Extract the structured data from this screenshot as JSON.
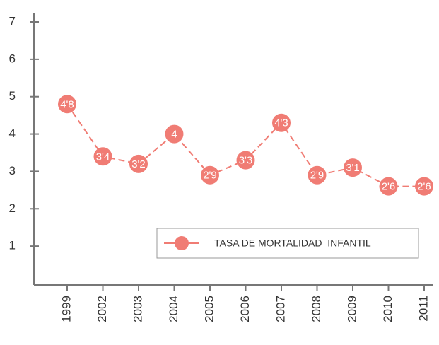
{
  "chart_data": {
    "type": "line",
    "categories": [
      "1999",
      "2002",
      "2003",
      "2004",
      "2005",
      "2006",
      "2007",
      "2008",
      "2009",
      "2010",
      "2011"
    ],
    "series": [
      {
        "name": "TASA DE MORTALIDAD  INFANTIL",
        "color": "#f07c74",
        "values": [
          4.8,
          3.4,
          3.2,
          4,
          2.9,
          3.3,
          4.3,
          2.9,
          3.1,
          2.6,
          2.6
        ],
        "value_labels": [
          "4'8",
          "3'4",
          "3'2",
          "4",
          "2'9",
          "3'3",
          "4'3",
          "2'9",
          "3'1",
          "2'6",
          "2'6"
        ]
      }
    ],
    "ylim": [
      0,
      7
    ],
    "yticks": [
      1,
      2,
      3,
      4,
      5,
      6,
      7
    ],
    "legend": "lower right"
  }
}
